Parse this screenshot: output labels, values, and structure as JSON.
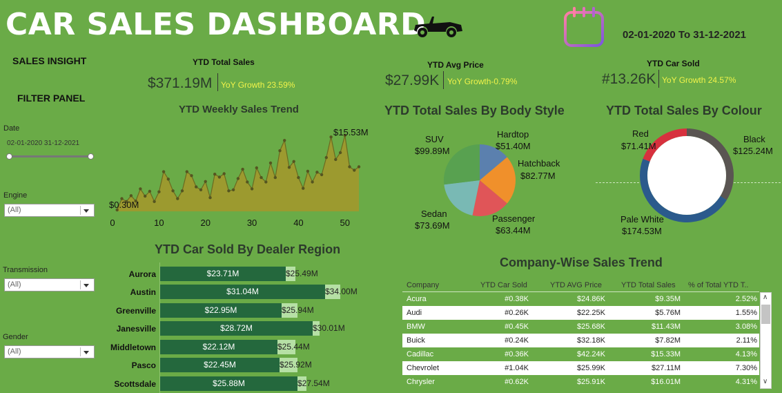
{
  "header": {
    "title": "CAR SALES DASHBOARD",
    "date_range": "02-01-2020 To 31-12-2021"
  },
  "sidebar": {
    "sales_insight": "SALES INSIGHT",
    "filter_panel": "FILTER PANEL",
    "date_label": "Date",
    "date_value": "02-01-2020 31-12-2021",
    "engine_label": "Engine",
    "engine_value": "(All)",
    "transmission_label": "Transmission",
    "transmission_value": "(All)",
    "gender_label": "Gender",
    "gender_value": "(All)"
  },
  "kpis": {
    "total_sales": {
      "label": "YTD Total Sales",
      "value": "$371.19M",
      "yoy": "YoY  Growth 23.59%"
    },
    "avg_price": {
      "label": "YTD Avg Price",
      "value": "$27.99K",
      "yoy": "YoY Growth-0.79%"
    },
    "car_sold": {
      "label": "YTD Car Sold",
      "value": "#13.26K",
      "yoy": "YoY Growth 24.57%"
    }
  },
  "weekly_trend": {
    "title": "YTD Weekly Sales Trend",
    "max_label": "$15.53M",
    "min_label": "$0.30M",
    "x_ticks": [
      "0",
      "10",
      "20",
      "30",
      "40",
      "50"
    ]
  },
  "body_style": {
    "title": "YTD Total Sales By Body Style",
    "labels": {
      "suv": "SUV",
      "suv_v": "$99.89M",
      "hardtop": "Hardtop",
      "hardtop_v": "$51.40M",
      "hatchback": "Hatchback",
      "hatchback_v": "$82.77M",
      "passenger": "Passenger",
      "passenger_v": "$63.44M",
      "sedan": "Sedan",
      "sedan_v": "$73.69M"
    },
    "colors": {
      "suv": "#58a150",
      "hardtop": "#5b80ae",
      "hatchback": "#f0902b",
      "passenger": "#e05558",
      "sedan": "#79b9b4"
    }
  },
  "colour": {
    "title": "YTD Total Sales By Colour",
    "labels": {
      "red": "Red",
      "red_v": "$71.41M",
      "black": "Black",
      "black_v": "$125.24M",
      "pale": "Pale White",
      "pale_v": "$174.53M"
    },
    "colors": {
      "red": "#d7313e",
      "black": "#5a5552",
      "pale": "#2b5a8c"
    }
  },
  "dealer": {
    "title": "YTD Car Sold By Dealer Region",
    "rows": [
      {
        "name": "Aurora",
        "cy": "$23.71M",
        "py": "$25.49M"
      },
      {
        "name": "Austin",
        "cy": "$31.04M",
        "py": "$34.00M"
      },
      {
        "name": "Greenville",
        "cy": "$22.95M",
        "py": "$25.94M"
      },
      {
        "name": "Janesville",
        "cy": "$28.72M",
        "py": "$30.01M"
      },
      {
        "name": "Middletown",
        "cy": "$22.12M",
        "py": "$25.44M"
      },
      {
        "name": "Pasco",
        "cy": "$22.45M",
        "py": "$25.92M"
      },
      {
        "name": "Scottsdale",
        "cy": "$25.88M",
        "py": "$27.54M"
      }
    ]
  },
  "company": {
    "title": "Company-Wise Sales Trend",
    "headers": [
      "Company",
      "YTD Car Sold",
      "YTD AVG Price",
      "YTD Total Sales",
      "% of Total YTD T.."
    ],
    "rows": [
      [
        "Acura",
        "#0.38K",
        "$24.86K",
        "$9.35M",
        "2.52%"
      ],
      [
        "Audi",
        "#0.26K",
        "$22.25K",
        "$5.76M",
        "1.55%"
      ],
      [
        "BMW",
        "#0.45K",
        "$25.68K",
        "$11.43M",
        "3.08%"
      ],
      [
        "Buick",
        "#0.24K",
        "$32.18K",
        "$7.82M",
        "2.11%"
      ],
      [
        "Cadillac",
        "#0.36K",
        "$42.24K",
        "$15.33M",
        "4.13%"
      ],
      [
        "Chevrolet",
        "#1.04K",
        "$25.99K",
        "$27.11M",
        "7.30%"
      ],
      [
        "Chrysler",
        "#0.62K",
        "$25.91K",
        "$16.01M",
        "4.31%"
      ]
    ]
  },
  "chart_data": [
    {
      "type": "area",
      "title": "YTD Weekly Sales Trend",
      "x": [
        1,
        2,
        3,
        4,
        5,
        6,
        7,
        8,
        9,
        10,
        11,
        12,
        13,
        14,
        15,
        16,
        17,
        18,
        19,
        20,
        21,
        22,
        23,
        24,
        25,
        26,
        27,
        28,
        29,
        30,
        31,
        32,
        33,
        34,
        35,
        36,
        37,
        38,
        39,
        40,
        41,
        42,
        43,
        44,
        45,
        46,
        47,
        48,
        49,
        50,
        51,
        52,
        53
      ],
      "values": [
        0.3,
        2.6,
        2.0,
        3.2,
        2.1,
        4.6,
        3.1,
        4.1,
        2.0,
        4.0,
        8.1,
        6.6,
        4.2,
        2.6,
        4.2,
        8.1,
        7.3,
        5.0,
        4.4,
        6.1,
        2.8,
        7.6,
        7.0,
        7.7,
        4.2,
        4.4,
        6.7,
        8.6,
        6.0,
        4.6,
        8.9,
        6.9,
        6.0,
        9.9,
        6.9,
        12.4,
        14.5,
        9.0,
        10.2,
        6.9,
        4.7,
        8.2,
        6.0,
        8.0,
        7.5,
        11.0,
        15.2,
        10.6,
        12.0,
        15.53,
        9.1,
        8.4,
        9.1
      ],
      "xlim": [
        0,
        53
      ],
      "ylim": [
        0,
        15.53
      ],
      "x_ticks": [
        0,
        10,
        20,
        30,
        40,
        50
      ]
    },
    {
      "type": "pie",
      "title": "YTD Total Sales By Body Style",
      "categories": [
        "Hardtop",
        "Hatchback",
        "Passenger",
        "Sedan",
        "SUV"
      ],
      "values": [
        51.4,
        82.77,
        63.44,
        73.69,
        99.89
      ]
    },
    {
      "type": "pie",
      "title": "YTD Total Sales By Colour",
      "categories": [
        "Black",
        "Pale White",
        "Red"
      ],
      "values": [
        125.24,
        174.53,
        71.41
      ]
    },
    {
      "type": "bar",
      "title": "YTD Car Sold By Dealer Region",
      "categories": [
        "Aurora",
        "Austin",
        "Greenville",
        "Janesville",
        "Middletown",
        "Pasco",
        "Scottsdale"
      ],
      "series": [
        {
          "values": [
            23.71,
            31.04,
            22.95,
            28.72,
            22.12,
            22.45,
            25.88
          ]
        },
        {
          "values": [
            25.49,
            34.0,
            25.94,
            30.01,
            25.44,
            25.92,
            27.54
          ]
        }
      ]
    }
  ]
}
